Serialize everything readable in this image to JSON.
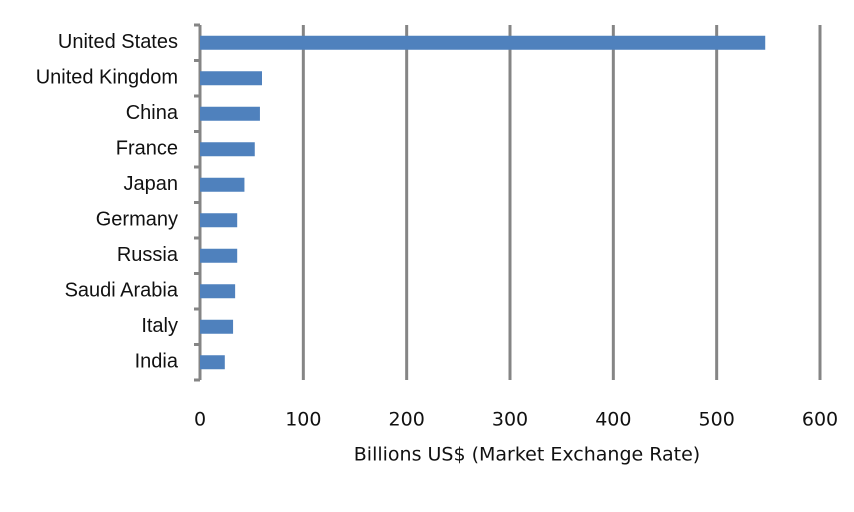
{
  "chart_data": {
    "type": "bar",
    "orientation": "horizontal",
    "xlabel": "Billions US$ (Market Exchange Rate)",
    "categories": [
      "United States",
      "United Kingdom",
      "China",
      "France",
      "Japan",
      "Germany",
      "Russia",
      "Saudi Arabia",
      "Italy",
      "India"
    ],
    "values": [
      547,
      60,
      58,
      53,
      43,
      36,
      36,
      34,
      32,
      24
    ],
    "color": "#4f81bd",
    "xlim": [
      0,
      600
    ],
    "xticks": [
      0,
      100,
      200,
      300,
      400,
      500,
      600
    ],
    "grid": true
  }
}
